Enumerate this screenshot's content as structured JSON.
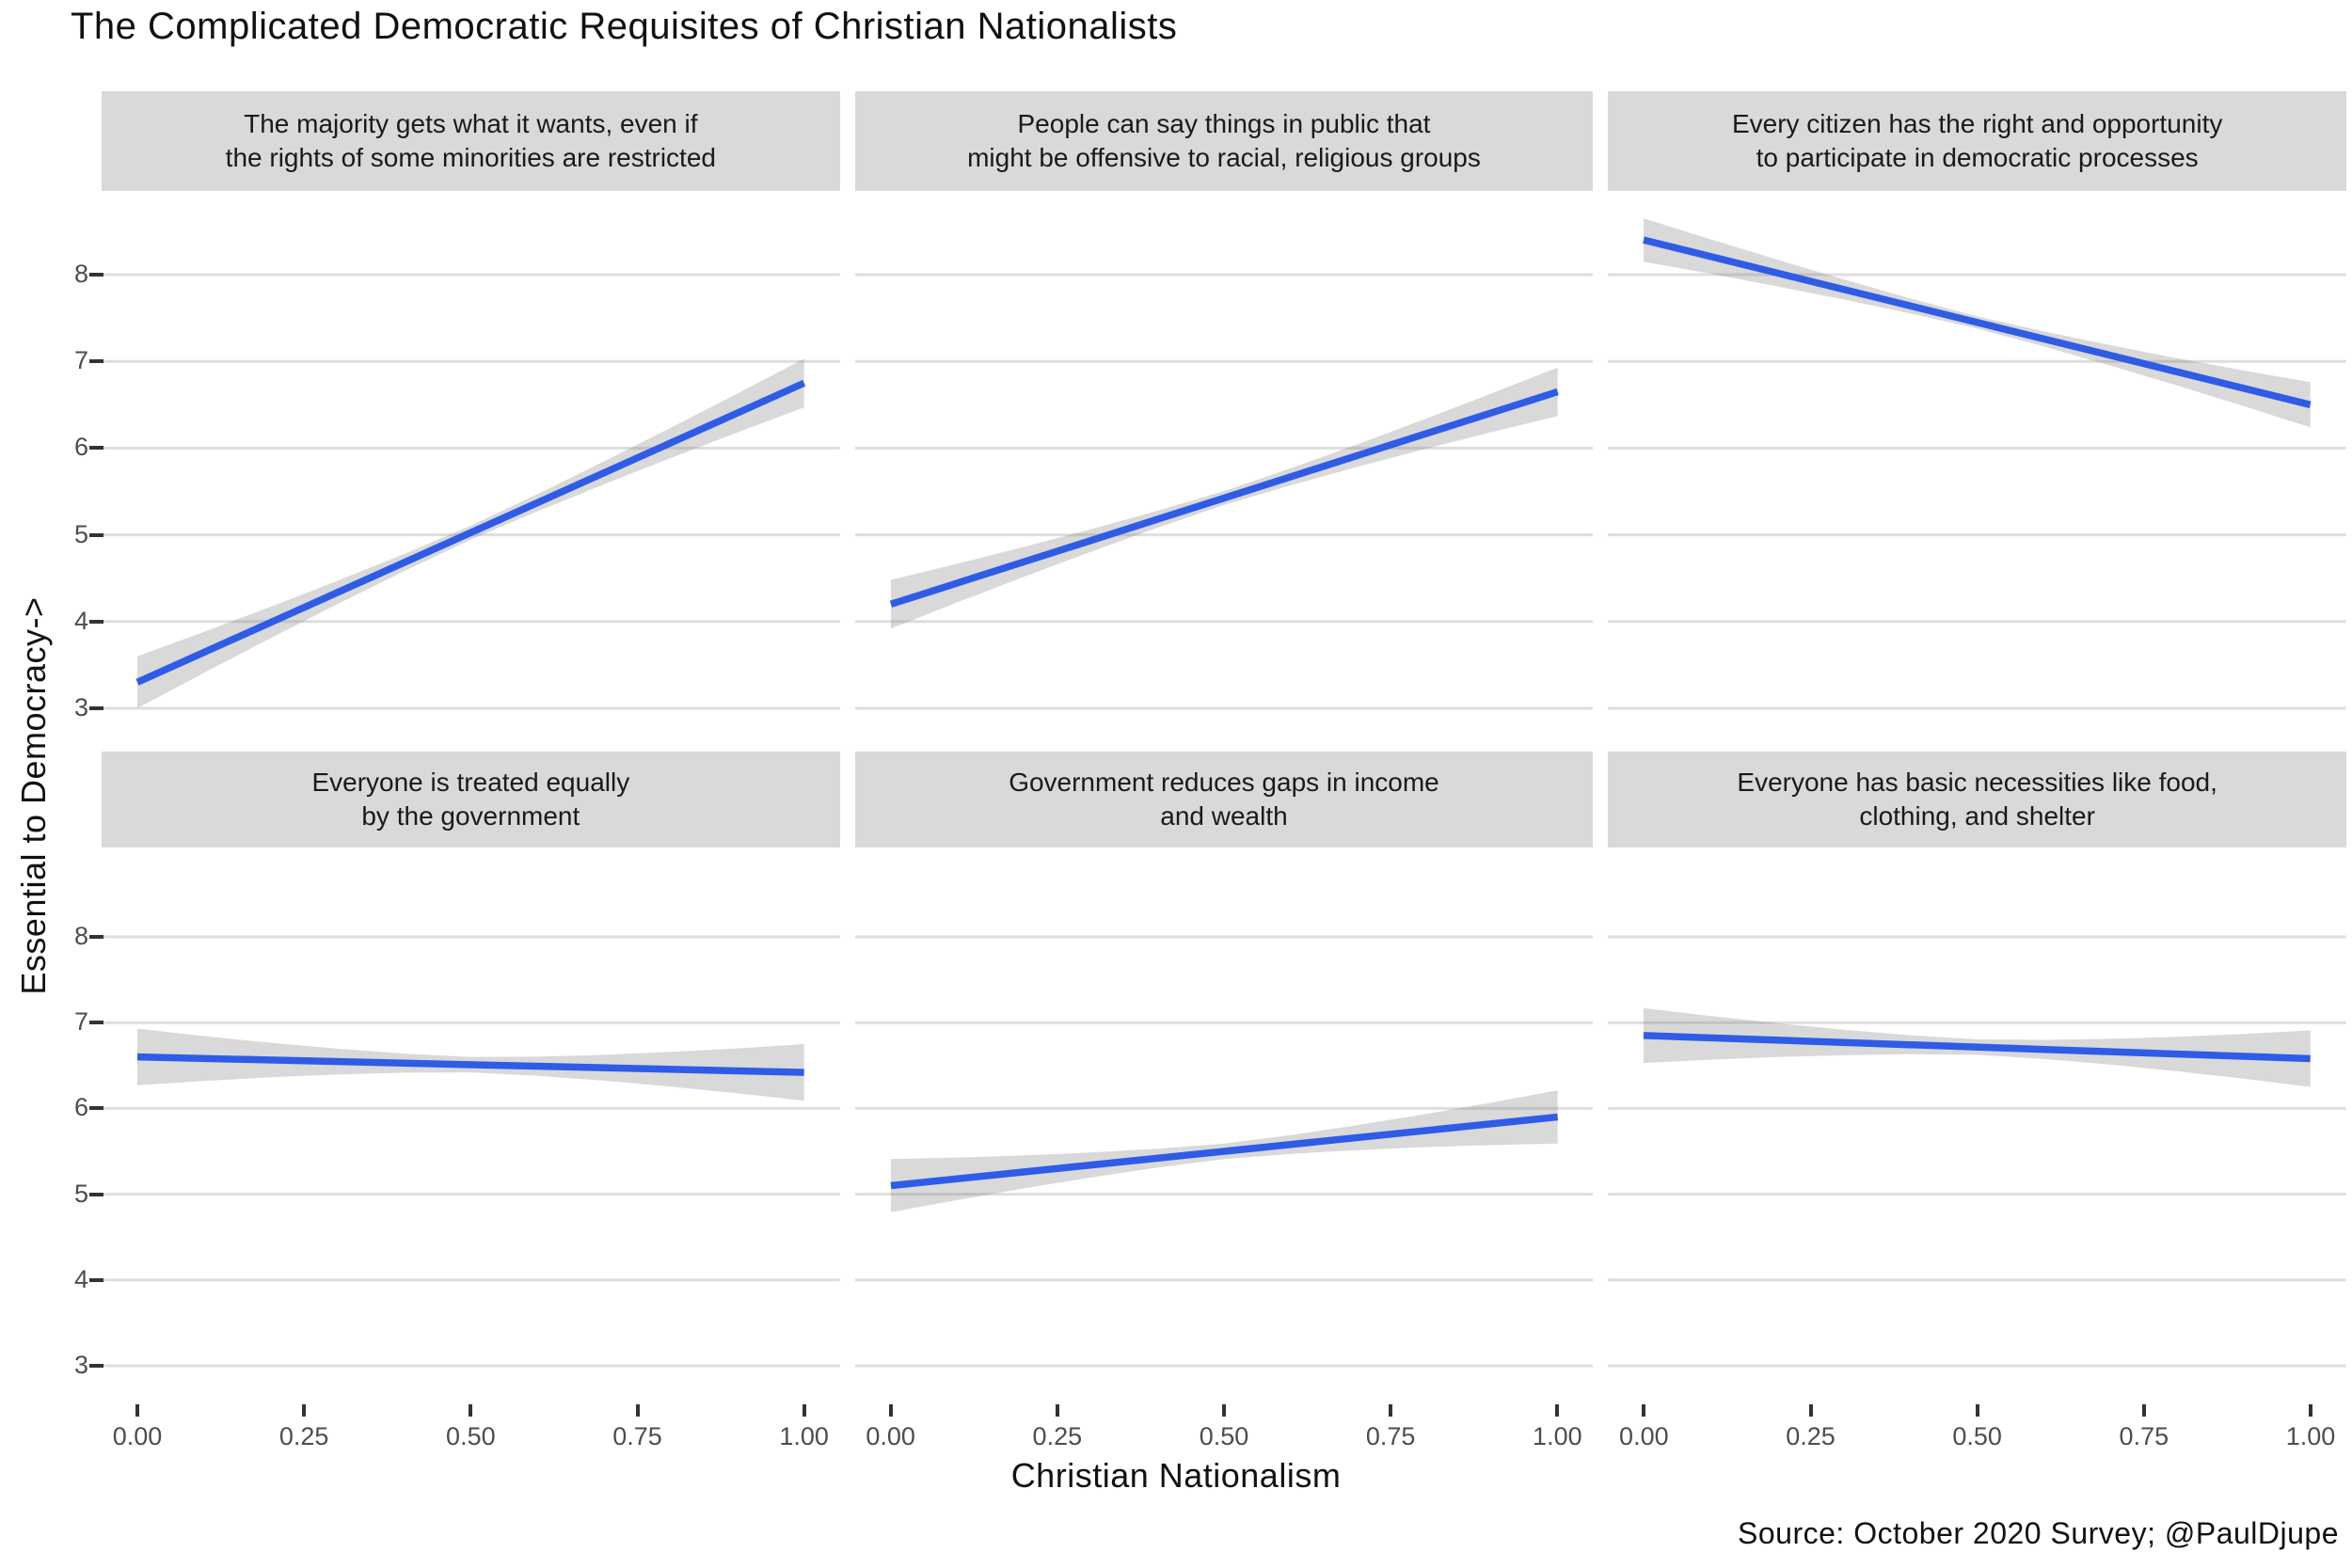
{
  "title": "The Complicated Democratic Requisites of Christian Nationalists",
  "axes": {
    "x_title": "Christian Nationalism",
    "y_title": "Essential to Democracy->",
    "x_tick_labels": [
      "0.00",
      "0.25",
      "0.50",
      "0.75",
      "1.00"
    ],
    "y_tick_values": [
      8,
      7,
      6,
      5,
      4,
      3
    ]
  },
  "source": "Source: October 2020 Survey; @PaulDjupe",
  "colors": {
    "line": "#2e5ce6",
    "band": "rgba(128,128,128,0.30)",
    "strip_bg": "#d9d9d9",
    "strip_text": "#1a1a1a",
    "gridline": "#dedede",
    "tick_mark": "#333333",
    "tick_text": "#4d4d4d",
    "background": "#ffffff"
  },
  "chart_data": {
    "type": "line",
    "subtype": "faceted linear fit with 95% confidence ribbon",
    "title": "The Complicated Democratic Requisites of Christian Nationalists",
    "xlabel": "Christian Nationalism",
    "ylabel": "Essential to Democracy->",
    "x_range": [
      0,
      1
    ],
    "x_ticks": [
      0,
      0.25,
      0.5,
      0.75,
      1
    ],
    "y_ticks": [
      3,
      4,
      5,
      6,
      7,
      8
    ],
    "grid": "horizontal gridlines only, no legend",
    "facets": [
      {
        "row": 0,
        "col": 0,
        "label": "The majority gets what it wants, even if\nthe rights of some minorities are restricted",
        "fit": {
          "x": [
            0,
            1
          ],
          "y": [
            3.3,
            6.75
          ]
        },
        "ci_halfwidth": {
          "start": 0.3,
          "mid": 0.08,
          "end": 0.28
        }
      },
      {
        "row": 0,
        "col": 1,
        "label": "People can say things in public that\nmight be offensive to racial, religious groups",
        "fit": {
          "x": [
            0,
            1
          ],
          "y": [
            4.2,
            6.65
          ]
        },
        "ci_halfwidth": {
          "start": 0.28,
          "mid": 0.08,
          "end": 0.28
        }
      },
      {
        "row": 0,
        "col": 2,
        "label": "Every citizen has the right and opportunity\nto participate in democratic processes",
        "fit": {
          "x": [
            0,
            1
          ],
          "y": [
            8.4,
            6.5
          ]
        },
        "ci_halfwidth": {
          "start": 0.25,
          "mid": 0.07,
          "end": 0.26
        }
      },
      {
        "row": 1,
        "col": 0,
        "label": "Everyone is treated equally\nby the government",
        "fit": {
          "x": [
            0,
            1
          ],
          "y": [
            6.6,
            6.42
          ]
        },
        "ci_halfwidth": {
          "start": 0.33,
          "mid": 0.09,
          "end": 0.33
        }
      },
      {
        "row": 1,
        "col": 1,
        "label": "Government reduces gaps in income\nand wealth",
        "fit": {
          "x": [
            0,
            1
          ],
          "y": [
            5.1,
            5.9
          ]
        },
        "ci_halfwidth": {
          "start": 0.31,
          "mid": 0.09,
          "end": 0.31
        }
      },
      {
        "row": 1,
        "col": 2,
        "label": "Everyone has basic necessities like food,\nclothing, and shelter",
        "fit": {
          "x": [
            0,
            1
          ],
          "y": [
            6.85,
            6.58
          ]
        },
        "ci_halfwidth": {
          "start": 0.32,
          "mid": 0.09,
          "end": 0.33
        }
      }
    ]
  }
}
